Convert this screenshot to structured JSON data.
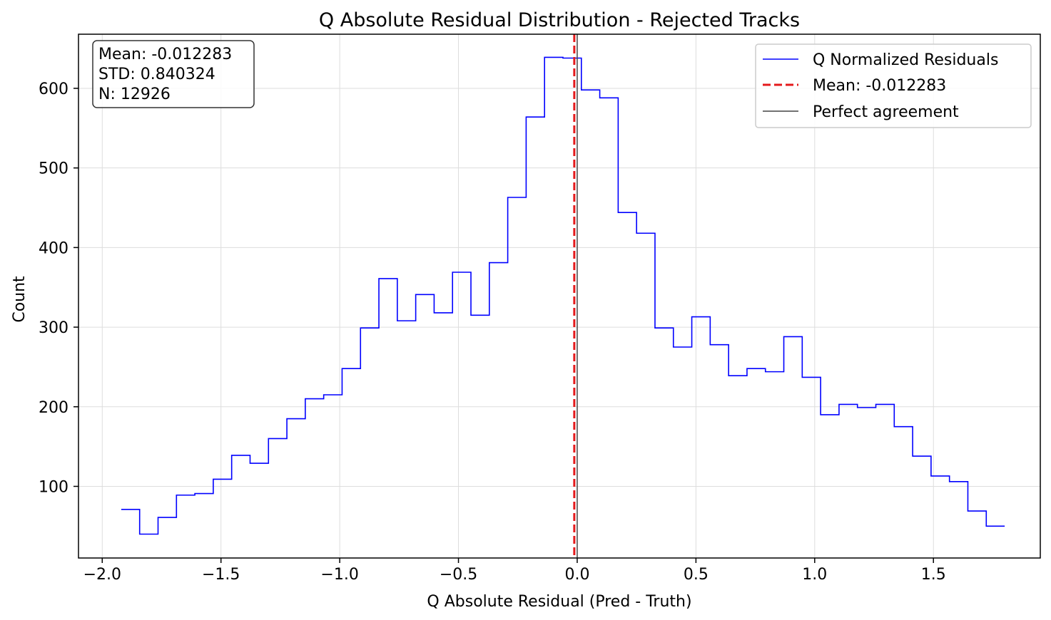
{
  "chart_data": {
    "type": "histogram",
    "title": "Q Absolute Residual Distribution - Rejected Tracks",
    "xlabel": "Q Absolute Residual (Pred - Truth)",
    "ylabel": "Count",
    "xlim": [
      -2.1,
      1.95
    ],
    "ylim": [
      10,
      668
    ],
    "grid": true,
    "x_ticks": [
      -2.0,
      -1.5,
      -1.0,
      -0.5,
      0.0,
      0.5,
      1.0,
      1.5
    ],
    "x_tick_labels": [
      "−2.0",
      "−1.5",
      "−1.0",
      "−0.5",
      "0.0",
      "0.5",
      "1.0",
      "1.5"
    ],
    "y_ticks": [
      100,
      200,
      300,
      400,
      500,
      600
    ],
    "y_tick_labels": [
      "100",
      "200",
      "300",
      "400",
      "500",
      "600"
    ],
    "bins": {
      "start": -1.92,
      "width": 0.0775,
      "counts": [
        71,
        40,
        61,
        89,
        91,
        109,
        139,
        129,
        160,
        185,
        210,
        215,
        248,
        299,
        361,
        308,
        341,
        318,
        369,
        315,
        381,
        463,
        564,
        639,
        638,
        598,
        588,
        444,
        418,
        299,
        275,
        313,
        278,
        239,
        248,
        244,
        288,
        237,
        190,
        203,
        199,
        203,
        175,
        138,
        113,
        106,
        69,
        50
      ]
    },
    "series": [
      {
        "name": "Q Normalized Residuals",
        "type": "step",
        "color": "#0000ff"
      },
      {
        "name": "Mean: -0.012283",
        "type": "vline",
        "x": -0.012283,
        "color": "#e41a1c",
        "style": "dashed"
      },
      {
        "name": "Perfect agreement",
        "type": "vline",
        "x": 0.0,
        "color": "#444444",
        "style": "solid"
      }
    ],
    "legend_position": "top-right",
    "stats_box": {
      "lines": [
        "Mean: -0.012283",
        "STD: 0.840324",
        "N: 12926"
      ],
      "position": "top-left"
    }
  }
}
